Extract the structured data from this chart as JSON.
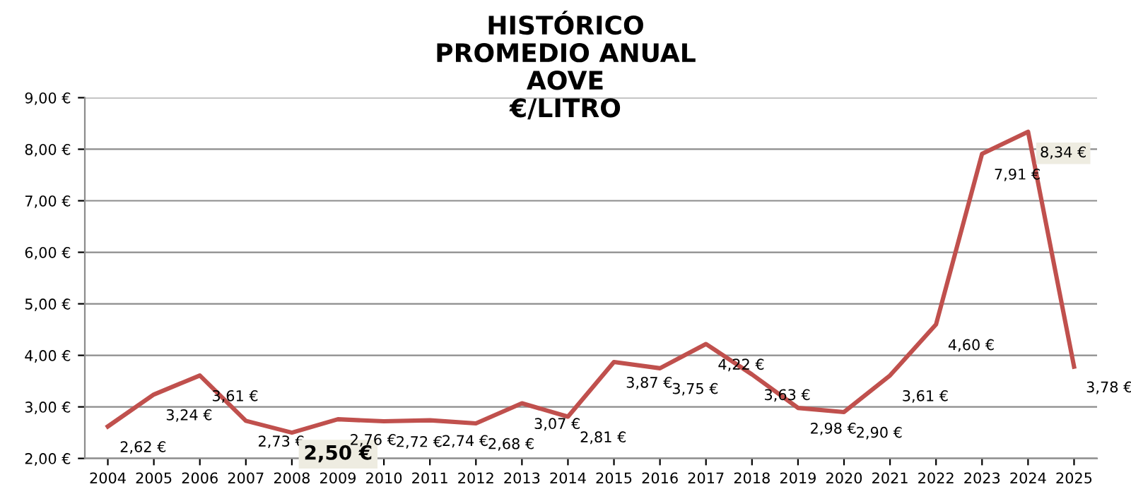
{
  "chart_data": {
    "type": "line",
    "title": "HISTÓRICO\nPROMEDIO ANUAL\nAOVE\n€/LITRO",
    "categories": [
      "2004",
      "2005",
      "2006",
      "2007",
      "2008",
      "2009",
      "2010",
      "2011",
      "2012",
      "2013",
      "2014",
      "2015",
      "2016",
      "2017",
      "2018",
      "2019",
      "2020",
      "2021",
      "2022",
      "2023",
      "2024",
      "2025"
    ],
    "series": [
      {
        "color": "#c0504d",
        "values": [
          2.62,
          3.24,
          3.61,
          2.73,
          2.5,
          2.76,
          2.72,
          2.74,
          2.68,
          3.07,
          2.81,
          3.87,
          3.75,
          4.22,
          3.63,
          2.98,
          2.9,
          3.61,
          4.6,
          7.91,
          8.34,
          3.78
        ],
        "value_labels": [
          "2,62 €",
          "3,24 €",
          "3,61 €",
          "2,73 €",
          "2,50 €",
          "2,76 €",
          "2,72 €",
          "2,74 €",
          "2,68 €",
          "3,07 €",
          "2,81 €",
          "3,87 €",
          "3,75 €",
          "4,22 €",
          "3,63 €",
          "2,98 €",
          "2,90 €",
          "3,61 €",
          "4,60 €",
          "7,91 €",
          "8,34 €",
          "3,78 €"
        ]
      }
    ],
    "ylim": [
      2,
      9
    ],
    "yticks": [
      {
        "value": 2,
        "label": "2,00 €"
      },
      {
        "value": 3,
        "label": "3,00 €"
      },
      {
        "value": 4,
        "label": "4,00 €"
      },
      {
        "value": 5,
        "label": "5,00 €"
      },
      {
        "value": 6,
        "label": "6,00 €"
      },
      {
        "value": 7,
        "label": "7,00 €"
      },
      {
        "value": 8,
        "label": "8,00 €"
      },
      {
        "value": 9,
        "label": "9,00 €"
      }
    ],
    "grid": "y",
    "marker": "none",
    "line_style": "solid",
    "legend": false
  }
}
